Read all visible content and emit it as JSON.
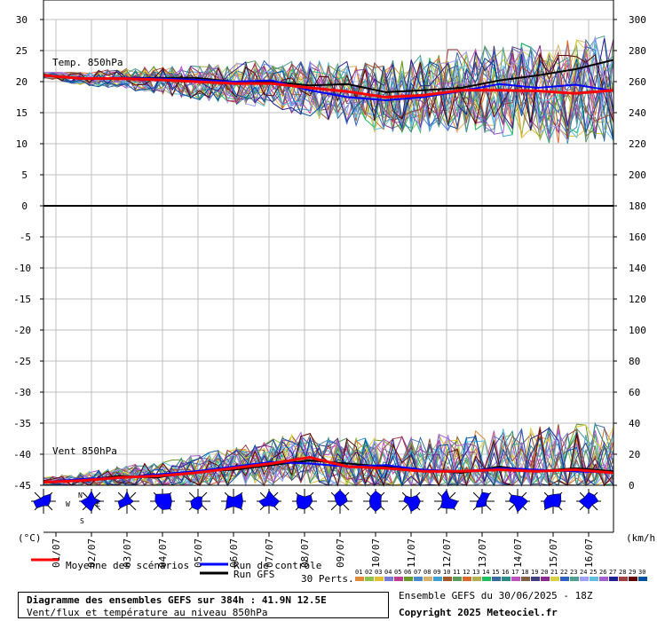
{
  "chart_data": {
    "type": "line",
    "x": [
      "01/07",
      "02/07",
      "03/07",
      "04/07",
      "05/07",
      "06/07",
      "07/07",
      "08/07",
      "09/07",
      "10/07",
      "11/07",
      "12/07",
      "13/07",
      "14/07",
      "15/07",
      "16/07"
    ],
    "temp_panel": {
      "label": "Temp. 850hPa",
      "ylim": [
        0,
        30
      ],
      "left_ticks": [
        "30",
        "25",
        "20",
        "15",
        "10",
        "5",
        "0"
      ],
      "right_ticks": [
        "300",
        "280",
        "260",
        "240",
        "220",
        "200",
        "180"
      ],
      "series": [
        {
          "name": "Moyenne des scénarios",
          "values": [
            21,
            20.5,
            20.5,
            20.3,
            20,
            19.7,
            19.7,
            19,
            18.4,
            17.5,
            17.8,
            18.6,
            18.6,
            18.5,
            18.1,
            18.6
          ]
        },
        {
          "name": "Run de contrôle",
          "values": [
            21,
            20.5,
            20.6,
            20.5,
            20.3,
            20,
            20.2,
            18.6,
            17.5,
            17,
            17.5,
            18.5,
            19.6,
            19,
            19.5,
            18.5
          ]
        },
        {
          "name": "Run GFS",
          "values": [
            21,
            20.5,
            20.6,
            20.6,
            20.6,
            20,
            20,
            19.4,
            19.6,
            18.3,
            18.6,
            19,
            20.2,
            21,
            22,
            23.5
          ]
        }
      ]
    },
    "wind_panel": {
      "label": "Vent 850hPa",
      "ylim": [
        -45,
        0
      ],
      "left_ticks": [
        "0",
        "-5",
        "-10",
        "-15",
        "-20",
        "-25",
        "-30",
        "-35",
        "-40",
        "-45"
      ],
      "right_ticks": [
        "180",
        "160",
        "140",
        "120",
        "100",
        "80",
        "60",
        "40",
        "20",
        "0"
      ],
      "series": [
        {
          "name": "Moyenne des scénarios",
          "values": [
            2,
            3,
            5,
            6,
            8,
            11,
            14,
            18,
            12,
            11,
            9,
            9,
            10,
            9,
            10,
            8
          ]
        },
        {
          "name": "Run de contrôle",
          "values": [
            2,
            4,
            5,
            7,
            9,
            12,
            15,
            14,
            12,
            13,
            10,
            9,
            11,
            10,
            9,
            8
          ]
        },
        {
          "name": "Run GFS",
          "values": [
            2,
            3,
            6,
            5,
            9,
            10,
            13,
            16,
            14,
            12,
            10,
            8,
            12,
            9,
            11,
            9
          ]
        }
      ]
    },
    "left_unit": "(°C)",
    "right_unit": "(km/h)",
    "legend": {
      "mean_label": "Moyenne des scénarios",
      "control_label": "Run de contrôle",
      "gfs_label": "Run GFS",
      "perts_label": "30 Perts.",
      "member_numbers": [
        "01",
        "02",
        "03",
        "04",
        "05",
        "06",
        "07",
        "08",
        "09",
        "10",
        "11",
        "12",
        "13",
        "14",
        "15",
        "16",
        "17",
        "18",
        "19",
        "20",
        "21",
        "22",
        "23",
        "24",
        "25",
        "26",
        "27",
        "28",
        "29",
        "30"
      ]
    },
    "compass_labels": [
      "N",
      "W",
      "E",
      "S"
    ],
    "colors": {
      "mean": "#ff0000",
      "control": "#0000ff",
      "gfs": "#000000",
      "grid": "#c0c0c0",
      "rose": "#0000ff",
      "members": [
        "#e08a3c",
        "#8fc24a",
        "#e0c030",
        "#7a7ad8",
        "#c03c8c",
        "#6a9a2a",
        "#4a8ac8",
        "#d8b070",
        "#40a0d0",
        "#a05a2a",
        "#5a9a5a",
        "#d86a2a",
        "#b0b050",
        "#20c060",
        "#3a6aa0",
        "#2a8a8a",
        "#c050c0",
        "#806040",
        "#404080",
        "#8a2a8a",
        "#d8d040",
        "#3060c0",
        "#50a090",
        "#a0a0ff",
        "#60c0e0",
        "#a060d0",
        "#202090",
        "#a04040",
        "#600000",
        "#0050a0"
      ]
    }
  },
  "footer": {
    "title": "Diagramme des ensembles GEFS sur 384h : 41.9N 12.5E",
    "subtitle": "Vent/flux et température au niveau 850hPa",
    "run_info": "Ensemble GEFS du 30/06/2025 - 18Z",
    "copyright": "Copyright 2025 Meteociel.fr"
  }
}
